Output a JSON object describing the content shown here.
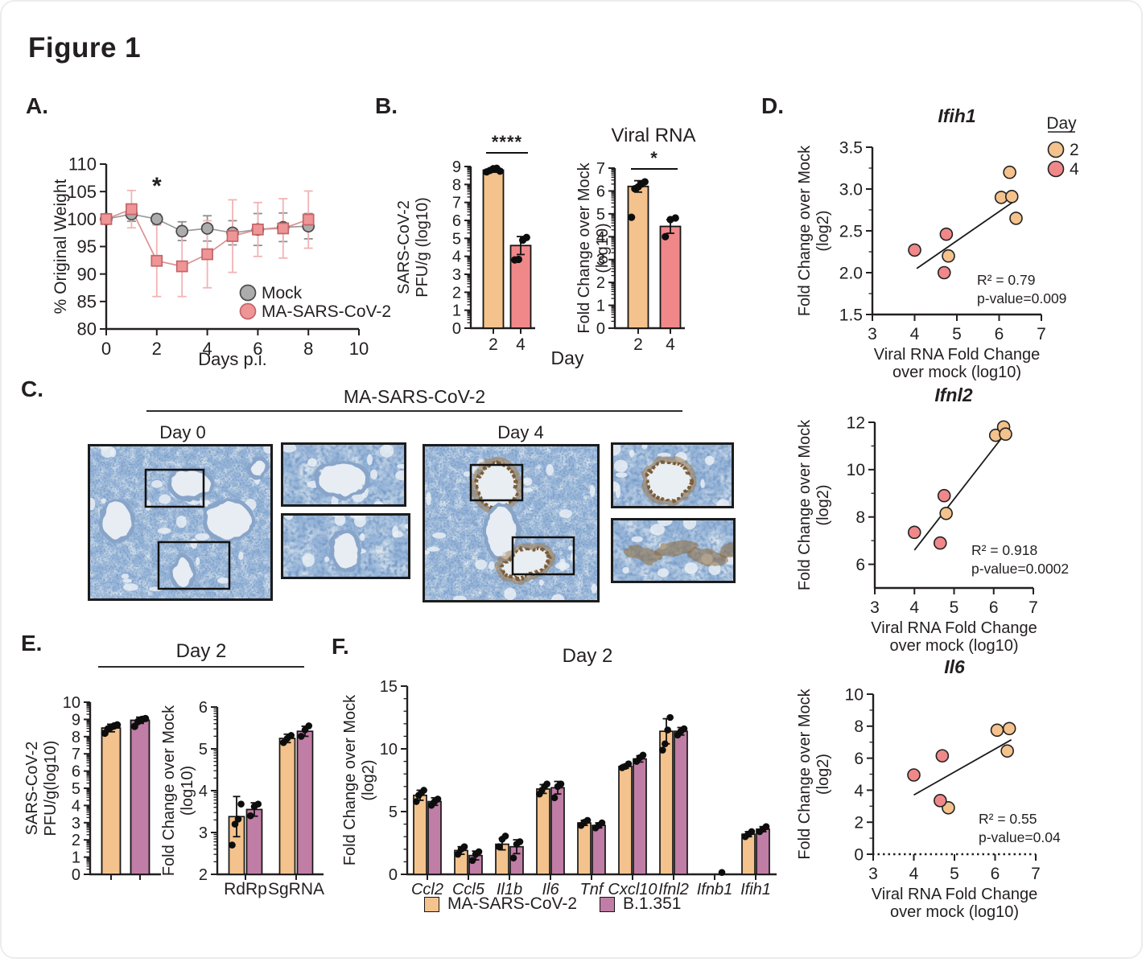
{
  "figure_title": "Figure 1",
  "panels": {
    "A": {
      "label": "A."
    },
    "B": {
      "label": "B.",
      "xlabel": "Day"
    },
    "C": {
      "label": "C.",
      "title": "MA-SARS-CoV-2",
      "group1": "Day 0",
      "group2": "Day 4"
    },
    "D": {
      "label": "D."
    },
    "E": {
      "label": "E.",
      "title": "Day 2"
    },
    "F": {
      "label": "F.",
      "title": "Day 2"
    }
  },
  "colors": {
    "day2_orange": "#F4C28C",
    "day4_red": "#F0888A",
    "mock_gray": "#ACACAC",
    "b1351_purple": "#C07DA5",
    "histology_blue": "#5b82b4",
    "stain_brown": "#8d6a3e"
  },
  "chart_data": [
    {
      "id": "weight",
      "panel": "A",
      "type": "line",
      "xlabel": "Days p.i.",
      "ylabel": "% Original Weight",
      "xlim": [
        0,
        10
      ],
      "xticks": [
        0,
        2,
        4,
        6,
        8,
        10
      ],
      "ylim": [
        80,
        110
      ],
      "yticks": [
        80,
        85,
        90,
        95,
        100,
        105,
        110
      ],
      "annotation": {
        "text": "*",
        "x": 2,
        "y": 104.6
      },
      "series": [
        {
          "name": "Mock",
          "marker": "circle",
          "fill": "#ACACAC",
          "stroke": "#4a4a4a",
          "line": "#9a9a9a",
          "err_color": "#8f8f8f",
          "x": [
            0,
            1,
            2,
            3,
            4,
            5,
            6,
            7,
            8
          ],
          "y": [
            100,
            100.9,
            100,
            97.8,
            98.3,
            97.5,
            98.1,
            98.5,
            98.7
          ],
          "err": [
            0.5,
            1.3,
            0.9,
            1.7,
            2.3,
            2.2,
            2.9,
            2.6,
            2.3
          ]
        },
        {
          "name": "MA-SARS-CoV-2",
          "marker": "square",
          "fill": "#F09597",
          "stroke": "#c26567",
          "line": "#dc9193",
          "err_color": "#f2b3b5",
          "x": [
            0,
            1,
            2,
            3,
            4,
            5,
            6,
            7,
            8
          ],
          "y": [
            100,
            101.8,
            92.4,
            91.4,
            93.6,
            96.9,
            98.1,
            98.3,
            99.9
          ],
          "err": [
            0.5,
            3.4,
            6.5,
            5.5,
            6.1,
            6.6,
            4.9,
            5.4,
            5.2
          ]
        }
      ]
    },
    {
      "id": "pfu",
      "panel": "B",
      "type": "bar",
      "ylabel_lines": [
        "SARS-CoV-2",
        "PFU/g (log10)"
      ],
      "categories": [
        "2",
        "4"
      ],
      "values": [
        8.8,
        4.6
      ],
      "errors": [
        0.12,
        0.5
      ],
      "colors": [
        "#F4C28C",
        "#F0888A"
      ],
      "points": [
        [
          8.7,
          8.78,
          8.88,
          8.9,
          8.74
        ],
        [
          3.8,
          3.83,
          4.9,
          5.05
        ]
      ],
      "ylim": [
        0,
        9
      ],
      "yticks": [
        0,
        1,
        2,
        3,
        4,
        5,
        6,
        7,
        8,
        9
      ],
      "minor": "log",
      "significance": "****"
    },
    {
      "id": "viral_rna",
      "panel": "B",
      "type": "bar",
      "title": "Viral RNA",
      "ylabel_lines": [
        "Fold Change over Mock",
        "(log10)"
      ],
      "categories": [
        "2",
        "4"
      ],
      "values": [
        6.2,
        4.45
      ],
      "errors": [
        0.25,
        0.3
      ],
      "colors": [
        "#F4C28C",
        "#F0888A"
      ],
      "points": [
        [
          4.85,
          6.1,
          6.18,
          6.3,
          6.4
        ],
        [
          4.0,
          4.75,
          4.82
        ]
      ],
      "ylim": [
        0,
        7
      ],
      "yticks": [
        0,
        1,
        2,
        3,
        4,
        5,
        6,
        7
      ],
      "minor": "log",
      "significance": "*"
    },
    {
      "id": "ifih1",
      "panel": "D",
      "type": "scatter",
      "title": "Ifih1",
      "xlabel_lines": [
        "Viral RNA Fold Change",
        "over mock (log10)"
      ],
      "ylabel_lines": [
        "Fold Change over Mock",
        "(log2)"
      ],
      "xlim": [
        3,
        7
      ],
      "xticks": [
        3,
        4,
        5,
        6,
        7
      ],
      "ylim": [
        1.5,
        3.5
      ],
      "yticks": [
        1.5,
        2.0,
        2.5,
        3.0,
        3.5
      ],
      "ytick_decimals": 1,
      "minor_step": 0.25,
      "legend": {
        "title": "Day",
        "items": [
          {
            "label": "2",
            "color": "#F4C28C"
          },
          {
            "label": "4",
            "color": "#F0888A"
          }
        ]
      },
      "series": [
        {
          "name": "2",
          "color": "#F4C28C",
          "points": [
            [
              4.8,
              2.2
            ],
            [
              6.05,
              2.9
            ],
            [
              6.25,
              3.2
            ],
            [
              6.3,
              2.91
            ],
            [
              6.4,
              2.65
            ]
          ]
        },
        {
          "name": "4",
          "color": "#F0888A",
          "points": [
            [
              4.0,
              2.27
            ],
            [
              4.7,
              2.0
            ],
            [
              4.75,
              2.46
            ]
          ]
        }
      ],
      "trend": [
        [
          4.05,
          2.05
        ],
        [
          6.4,
          2.87
        ]
      ],
      "stats": [
        "R² = 0.79",
        "p-value=0.009"
      ]
    },
    {
      "id": "ifnl2",
      "panel": "D",
      "type": "scatter",
      "title": "Ifnl2",
      "xlabel_lines": [
        "Viral RNA Fold Change",
        "over mock (log10)"
      ],
      "ylabel_lines": [
        "Fold Change over Mock",
        "(log2)"
      ],
      "xlim": [
        3,
        7
      ],
      "xticks": [
        3,
        4,
        5,
        6,
        7
      ],
      "ylim": [
        5,
        12
      ],
      "yticks": [
        6,
        8,
        10,
        12
      ],
      "ytick_decimals": 0,
      "minor_step": 1,
      "series": [
        {
          "name": "2",
          "color": "#F4C28C",
          "points": [
            [
              4.8,
              8.15
            ],
            [
              6.05,
              11.45
            ],
            [
              6.25,
              11.8
            ],
            [
              6.3,
              11.5
            ]
          ]
        },
        {
          "name": "4",
          "color": "#F0888A",
          "points": [
            [
              4.0,
              7.35
            ],
            [
              4.65,
              6.9
            ],
            [
              4.75,
              8.9
            ]
          ]
        }
      ],
      "trend": [
        [
          4.0,
          6.6
        ],
        [
          6.3,
          11.55
        ]
      ],
      "stats": [
        "R² = 0.918",
        "p-value=0.0002"
      ]
    },
    {
      "id": "il6",
      "panel": "D",
      "type": "scatter",
      "title": "Il6",
      "xlabel_lines": [
        "Viral RNA Fold Change",
        "over mock (log10)"
      ],
      "ylabel_lines": [
        "Fold Change over Mock",
        "(log2)"
      ],
      "xlim": [
        3,
        7
      ],
      "xticks": [
        3,
        4,
        5,
        6,
        7
      ],
      "ylim": [
        0,
        10
      ],
      "yticks": [
        0,
        2,
        4,
        6,
        8,
        10
      ],
      "ytick_decimals": 0,
      "minor_step": 1,
      "xaxis_dotted": true,
      "series": [
        {
          "name": "2",
          "color": "#F4C28C",
          "points": [
            [
              4.85,
              2.9
            ],
            [
              6.05,
              7.75
            ],
            [
              6.3,
              6.45
            ],
            [
              6.35,
              7.85
            ]
          ]
        },
        {
          "name": "4",
          "color": "#F0888A",
          "points": [
            [
              4.0,
              4.95
            ],
            [
              4.65,
              3.35
            ],
            [
              4.7,
              6.15
            ]
          ]
        }
      ],
      "trend": [
        [
          4.0,
          3.7
        ],
        [
          6.4,
          7.15
        ]
      ],
      "stats": [
        "R² = 0.55",
        "p-value=0.04"
      ]
    },
    {
      "id": "e_pfu",
      "panel": "E",
      "type": "bar",
      "ylabel_lines": [
        "SARS-CoV-2",
        "PFU/g(log10)"
      ],
      "categories": [
        "",
        ""
      ],
      "values": [
        8.5,
        8.95
      ],
      "errors": [
        0.22,
        0.18
      ],
      "colors": [
        "#F4C28C",
        "#C07DA5"
      ],
      "points": [
        [
          8.2,
          8.45,
          8.55,
          8.62,
          8.68
        ],
        [
          8.6,
          8.88,
          9.0,
          9.05
        ]
      ],
      "ylim": [
        0,
        10
      ],
      "yticks": [
        0,
        1,
        2,
        3,
        4,
        5,
        6,
        7,
        8,
        9,
        10
      ],
      "minor": "log"
    },
    {
      "id": "e_fc",
      "panel": "E",
      "type": "groupbar",
      "ylabel_lines": [
        "Fold Change over Mock",
        "(log10)"
      ],
      "categories": [
        "RdRp",
        "SgRNA"
      ],
      "series": [
        {
          "name": "MA-SARS-CoV-2",
          "color": "#F4C28C",
          "values": [
            3.38,
            5.25
          ],
          "errors": [
            0.48,
            0.1
          ],
          "points": [
            [
              2.7,
              3.2,
              3.32,
              3.68
            ],
            [
              5.15,
              5.25,
              5.32
            ]
          ]
        },
        {
          "name": "B.1.351",
          "color": "#C07DA5",
          "values": [
            3.55,
            5.42
          ],
          "errors": [
            0.16,
            0.12
          ],
          "points": [
            [
              3.4,
              3.62,
              3.68
            ],
            [
              5.3,
              5.45,
              5.55
            ]
          ]
        }
      ],
      "ylim": [
        2,
        6
      ],
      "yticks": [
        2,
        3,
        4,
        5,
        6
      ],
      "minor": "log"
    },
    {
      "id": "cytokines",
      "panel": "F",
      "type": "groupbar",
      "ylabel_lines": [
        "Fold Change over Mock",
        "(log2)"
      ],
      "categories": [
        "Ccl2",
        "Ccl5",
        "Il1b",
        "Il6",
        "Tnf",
        "Cxcl10",
        "Ifnl2",
        "Ifnb1",
        "Ifih1"
      ],
      "categories_italic": true,
      "series": [
        {
          "name": "MA-SARS-CoV-2",
          "color": "#F4C28C",
          "values": [
            6.3,
            1.9,
            2.4,
            6.8,
            4.1,
            8.6,
            11.4,
            0,
            3.2
          ],
          "errors": [
            0.4,
            0.3,
            0.45,
            0.35,
            0.2,
            0.15,
            1.0,
            0,
            0.2
          ],
          "points": [
            [
              5.8,
              6.3,
              6.5,
              6.7
            ],
            [
              1.6,
              2.0,
              2.2
            ],
            [
              2.2,
              2.8,
              3.05
            ],
            [
              6.4,
              6.7,
              7.0,
              7.2
            ],
            [
              3.9,
              4.15,
              4.3
            ],
            [
              8.5,
              8.6,
              8.8
            ],
            [
              9.9,
              10.4,
              11.5,
              12.5
            ],
            [],
            [
              3.0,
              3.2,
              3.4
            ]
          ]
        },
        {
          "name": "B.1.351",
          "color": "#C07DA5",
          "values": [
            5.8,
            1.5,
            2.2,
            6.9,
            3.9,
            9.2,
            11.4,
            0,
            3.6
          ],
          "errors": [
            0.3,
            0.35,
            0.55,
            0.5,
            0.2,
            0.25,
            0.3,
            0,
            0.2
          ],
          "points": [
            [
              5.5,
              5.8,
              6.0
            ],
            [
              1.1,
              1.6,
              1.8
            ],
            [
              1.3,
              2.4,
              2.6
            ],
            [
              6.1,
              7.0,
              7.2
            ],
            [
              3.7,
              3.9,
              4.1
            ],
            [
              9.0,
              9.3,
              9.5
            ],
            [
              11.1,
              11.4,
              11.6
            ],
            [
              0.15
            ],
            [
              3.4,
              3.6,
              3.8
            ]
          ]
        }
      ],
      "ylim": [
        0,
        15
      ],
      "yticks": [
        0,
        5,
        10,
        15
      ],
      "minor": "step1",
      "legend": [
        {
          "label": "MA-SARS-CoV-2",
          "color": "#F4C28C"
        },
        {
          "label": "B.1.351",
          "color": "#C07DA5"
        }
      ]
    }
  ]
}
